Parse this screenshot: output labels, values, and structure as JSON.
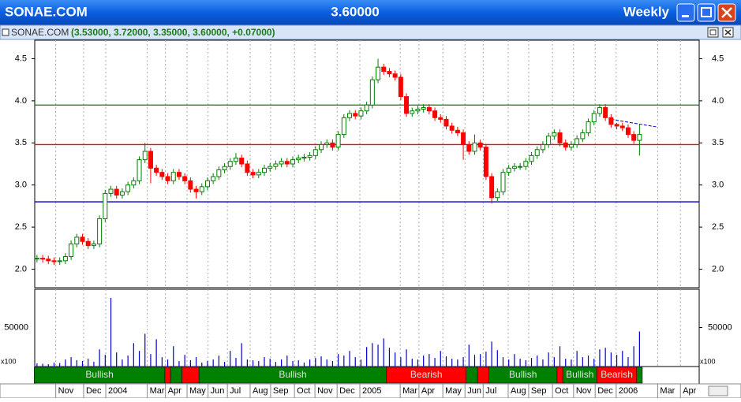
{
  "header": {
    "symbol": "SONAE.COM",
    "last": "3.60000",
    "period": "Weekly",
    "subtitle_symbol": "SONAE.COM",
    "subtitle_values": "(3.53000, 3.72000, 3.35000, 3.60000, +0.07000)"
  },
  "chart_data": {
    "type": "candlestick",
    "open": [
      2.12,
      2.13,
      2.12,
      2.1,
      2.09,
      2.1,
      2.15,
      2.3,
      2.38,
      2.33,
      2.28,
      2.3,
      2.6,
      2.9,
      2.95,
      2.88,
      2.92,
      3.0,
      3.05,
      3.3,
      3.4,
      3.2,
      3.15,
      3.1,
      3.05,
      3.15,
      3.1,
      3.05,
      2.95,
      2.92,
      2.98,
      3.05,
      3.1,
      3.18,
      3.22,
      3.28,
      3.32,
      3.25,
      3.15,
      3.12,
      3.15,
      3.2,
      3.22,
      3.25,
      3.28,
      3.25,
      3.3,
      3.32,
      3.33,
      3.35,
      3.42,
      3.48,
      3.5,
      3.45,
      3.6,
      3.8,
      3.85,
      3.82,
      3.88,
      3.95,
      4.25,
      4.4,
      4.35,
      4.32,
      4.28,
      4.05,
      3.85,
      3.88,
      3.9,
      3.92,
      3.88,
      3.8,
      3.78,
      3.7,
      3.65,
      3.62,
      3.48,
      3.4,
      3.5,
      3.45,
      3.1,
      2.85,
      2.92,
      3.15,
      3.2,
      3.22,
      3.22,
      3.28,
      3.35,
      3.42,
      3.48,
      3.58,
      3.62,
      3.5,
      3.45,
      3.48,
      3.55,
      3.62,
      3.75,
      3.85,
      3.92,
      3.8,
      3.72,
      3.7,
      3.68,
      3.6,
      3.53
    ],
    "high": [
      2.17,
      2.17,
      2.16,
      2.14,
      2.14,
      2.19,
      2.34,
      2.42,
      2.42,
      2.37,
      2.34,
      2.64,
      2.94,
      2.99,
      2.99,
      2.96,
      3.04,
      3.09,
      3.34,
      3.5,
      3.44,
      3.24,
      3.19,
      3.14,
      3.19,
      3.19,
      3.14,
      3.09,
      2.99,
      3.02,
      3.09,
      3.14,
      3.22,
      3.26,
      3.32,
      3.38,
      3.36,
      3.29,
      3.19,
      3.19,
      3.24,
      3.26,
      3.29,
      3.32,
      3.32,
      3.34,
      3.36,
      3.37,
      3.39,
      3.46,
      3.52,
      3.54,
      3.54,
      3.64,
      3.84,
      3.89,
      3.89,
      3.92,
      3.99,
      4.29,
      4.5,
      4.44,
      4.39,
      4.36,
      4.32,
      4.09,
      3.92,
      3.94,
      3.96,
      3.96,
      3.92,
      3.84,
      3.82,
      3.74,
      3.69,
      3.66,
      3.52,
      3.6,
      3.54,
      3.49,
      3.14,
      2.96,
      3.19,
      3.24,
      3.26,
      3.26,
      3.32,
      3.39,
      3.46,
      3.52,
      3.62,
      3.66,
      3.66,
      3.54,
      3.52,
      3.59,
      3.66,
      3.79,
      3.89,
      3.96,
      3.96,
      3.84,
      3.74,
      3.74,
      3.72,
      3.64,
      3.72
    ],
    "low": [
      2.08,
      2.08,
      2.06,
      2.05,
      2.05,
      2.06,
      2.11,
      2.26,
      2.29,
      2.24,
      2.24,
      2.26,
      2.56,
      2.86,
      2.84,
      2.84,
      2.88,
      2.96,
      3.01,
      3.26,
      3.02,
      3.11,
      3.06,
      3.01,
      3.01,
      3.06,
      3.01,
      2.91,
      2.84,
      2.88,
      2.94,
      3.01,
      3.06,
      3.14,
      3.18,
      3.24,
      3.21,
      3.11,
      3.08,
      3.08,
      3.11,
      3.16,
      3.18,
      3.21,
      3.21,
      3.21,
      3.26,
      3.28,
      3.29,
      3.31,
      3.38,
      3.44,
      3.41,
      3.41,
      3.56,
      3.76,
      3.78,
      3.78,
      3.84,
      3.91,
      4.21,
      4.31,
      4.28,
      4.24,
      4.01,
      3.81,
      3.81,
      3.84,
      3.86,
      3.84,
      3.76,
      3.74,
      3.66,
      3.61,
      3.58,
      3.3,
      3.36,
      3.36,
      3.41,
      3.06,
      2.78,
      2.81,
      2.88,
      3.11,
      3.16,
      3.18,
      3.18,
      3.24,
      3.31,
      3.38,
      3.44,
      3.54,
      3.46,
      3.41,
      3.41,
      3.44,
      3.51,
      3.58,
      3.71,
      3.81,
      3.76,
      3.68,
      3.66,
      3.64,
      3.56,
      3.49,
      3.35
    ],
    "close": [
      2.13,
      2.12,
      2.1,
      2.09,
      2.1,
      2.15,
      2.3,
      2.38,
      2.33,
      2.28,
      2.3,
      2.6,
      2.9,
      2.95,
      2.88,
      2.92,
      3.0,
      3.05,
      3.3,
      3.4,
      3.2,
      3.15,
      3.1,
      3.05,
      3.15,
      3.1,
      3.05,
      2.95,
      2.92,
      2.98,
      3.05,
      3.1,
      3.18,
      3.22,
      3.28,
      3.32,
      3.25,
      3.15,
      3.12,
      3.15,
      3.2,
      3.22,
      3.25,
      3.28,
      3.25,
      3.3,
      3.32,
      3.33,
      3.35,
      3.42,
      3.48,
      3.5,
      3.45,
      3.6,
      3.8,
      3.85,
      3.82,
      3.88,
      3.95,
      4.25,
      4.4,
      4.35,
      4.32,
      4.28,
      4.05,
      3.85,
      3.88,
      3.9,
      3.92,
      3.88,
      3.8,
      3.78,
      3.7,
      3.65,
      3.62,
      3.48,
      3.4,
      3.5,
      3.45,
      3.1,
      2.85,
      2.92,
      3.15,
      3.2,
      3.22,
      3.22,
      3.28,
      3.35,
      3.42,
      3.48,
      3.58,
      3.62,
      3.5,
      3.45,
      3.48,
      3.55,
      3.62,
      3.75,
      3.85,
      3.92,
      3.8,
      3.72,
      3.7,
      3.68,
      3.6,
      3.53,
      3.6
    ],
    "volume": [
      4000,
      3500,
      3000,
      5000,
      4500,
      9000,
      12000,
      8000,
      7000,
      10000,
      6000,
      22000,
      15000,
      88000,
      18000,
      9000,
      14000,
      30000,
      20000,
      42000,
      16000,
      35000,
      12000,
      9000,
      26000,
      7000,
      15000,
      8000,
      12000,
      5000,
      7000,
      9000,
      14000,
      6000,
      20000,
      11000,
      30000,
      9000,
      8000,
      7000,
      12000,
      10000,
      6000,
      9000,
      14000,
      7000,
      8000,
      5000,
      9000,
      11000,
      13000,
      9000,
      7000,
      16000,
      14000,
      20000,
      12000,
      9000,
      25000,
      30000,
      28000,
      36000,
      24000,
      18000,
      12000,
      22000,
      10000,
      9000,
      14000,
      16000,
      11000,
      20000,
      13000,
      10000,
      9000,
      12000,
      28000,
      15000,
      16000,
      19000,
      32000,
      21000,
      12000,
      9000,
      16000,
      10000,
      8000,
      11000,
      14000,
      9000,
      18000,
      12000,
      26000,
      10000,
      9000,
      20000,
      12000,
      14000,
      10000,
      22000,
      24000,
      18000,
      15000,
      20000,
      12000,
      26000,
      45000
    ],
    "up_color": "#008000",
    "down_color": "#ff0000",
    "volume_color": "#0000cc",
    "xlim": [
      -0.4,
      116.5
    ],
    "xticks": [
      {
        "value": 3.3,
        "label": "Nov"
      },
      {
        "value": 8.2,
        "label": "Dec"
      },
      {
        "value": 12.1,
        "label": "2004"
      },
      {
        "value": 19.4,
        "label": "Mar"
      },
      {
        "value": 22.6,
        "label": "Apr"
      },
      {
        "value": 26.4,
        "label": "May"
      },
      {
        "value": 30.1,
        "label": "Jun"
      },
      {
        "value": 33.5,
        "label": "Jul"
      },
      {
        "value": 37.5,
        "label": "Aug"
      },
      {
        "value": 41.1,
        "label": "Sep"
      },
      {
        "value": 45.3,
        "label": "Oct"
      },
      {
        "value": 48.9,
        "label": "Nov"
      },
      {
        "value": 52.8,
        "label": "Dec"
      },
      {
        "value": 56.8,
        "label": "2005"
      },
      {
        "value": 63.9,
        "label": "Mar"
      },
      {
        "value": 67.2,
        "label": "Apr"
      },
      {
        "value": 71.4,
        "label": "May"
      },
      {
        "value": 75.3,
        "label": "Jun"
      },
      {
        "value": 78.5,
        "label": "Jul"
      },
      {
        "value": 82.9,
        "label": "Aug"
      },
      {
        "value": 86.5,
        "label": "Sep"
      },
      {
        "value": 90.7,
        "label": "Oct"
      },
      {
        "value": 94.4,
        "label": "Nov"
      },
      {
        "value": 98.2,
        "label": "Dec"
      },
      {
        "value": 101.9,
        "label": "2006"
      },
      {
        "value": 109.2,
        "label": "Mar"
      },
      {
        "value": 113.2,
        "label": "Apr"
      }
    ],
    "ylim": [
      1.78,
      4.72
    ],
    "yticks": [
      {
        "value": 2,
        "label": "2.0"
      },
      2.5,
      {
        "value": 3,
        "label": "3.0"
      },
      3.5,
      {
        "value": 4,
        "label": "4.0"
      },
      4.5
    ],
    "volume_ylim": [
      0,
      99000
    ],
    "volume_yticks": [
      50000
    ],
    "volume_multiplier": "x100",
    "levels": [
      {
        "value": 3.95,
        "color": "#008000"
      },
      {
        "value": 3.48,
        "color": "#ff0000"
      },
      {
        "value": 2.8,
        "color": "#0000cc"
      }
    ],
    "trendline": {
      "x": [
        101,
        109
      ],
      "y": [
        3.78,
        3.69
      ],
      "color": "#0000cc"
    },
    "signal_bands": [
      {
        "start": 0,
        "end": 23,
        "state": "bull",
        "label": "Bullish"
      },
      {
        "start": 23,
        "end": 24,
        "state": "bear",
        "label": null
      },
      {
        "start": 24,
        "end": 26,
        "state": "bull",
        "label": null
      },
      {
        "start": 26,
        "end": 29,
        "state": "bear",
        "label": null
      },
      {
        "start": 29,
        "end": 62,
        "state": "bull",
        "label": "Bullish"
      },
      {
        "start": 62,
        "end": 76,
        "state": "bear",
        "label": "Bearish"
      },
      {
        "start": 76,
        "end": 78,
        "state": "bull",
        "label": null
      },
      {
        "start": 78,
        "end": 80,
        "state": "bear",
        "label": null
      },
      {
        "start": 80,
        "end": 92,
        "state": "bull",
        "label": "Bullish"
      },
      {
        "start": 92,
        "end": 93,
        "state": "bear",
        "label": null
      },
      {
        "start": 93,
        "end": 99,
        "state": "bull",
        "label": "Bullish"
      },
      {
        "start": 99,
        "end": 106,
        "state": "bear",
        "label": "Bearish"
      },
      {
        "start": 106,
        "end": 107,
        "state": "bull",
        "label": null
      }
    ],
    "band_colors": {
      "bull": "#008000",
      "bear": "#ff0000"
    },
    "grid": true
  }
}
